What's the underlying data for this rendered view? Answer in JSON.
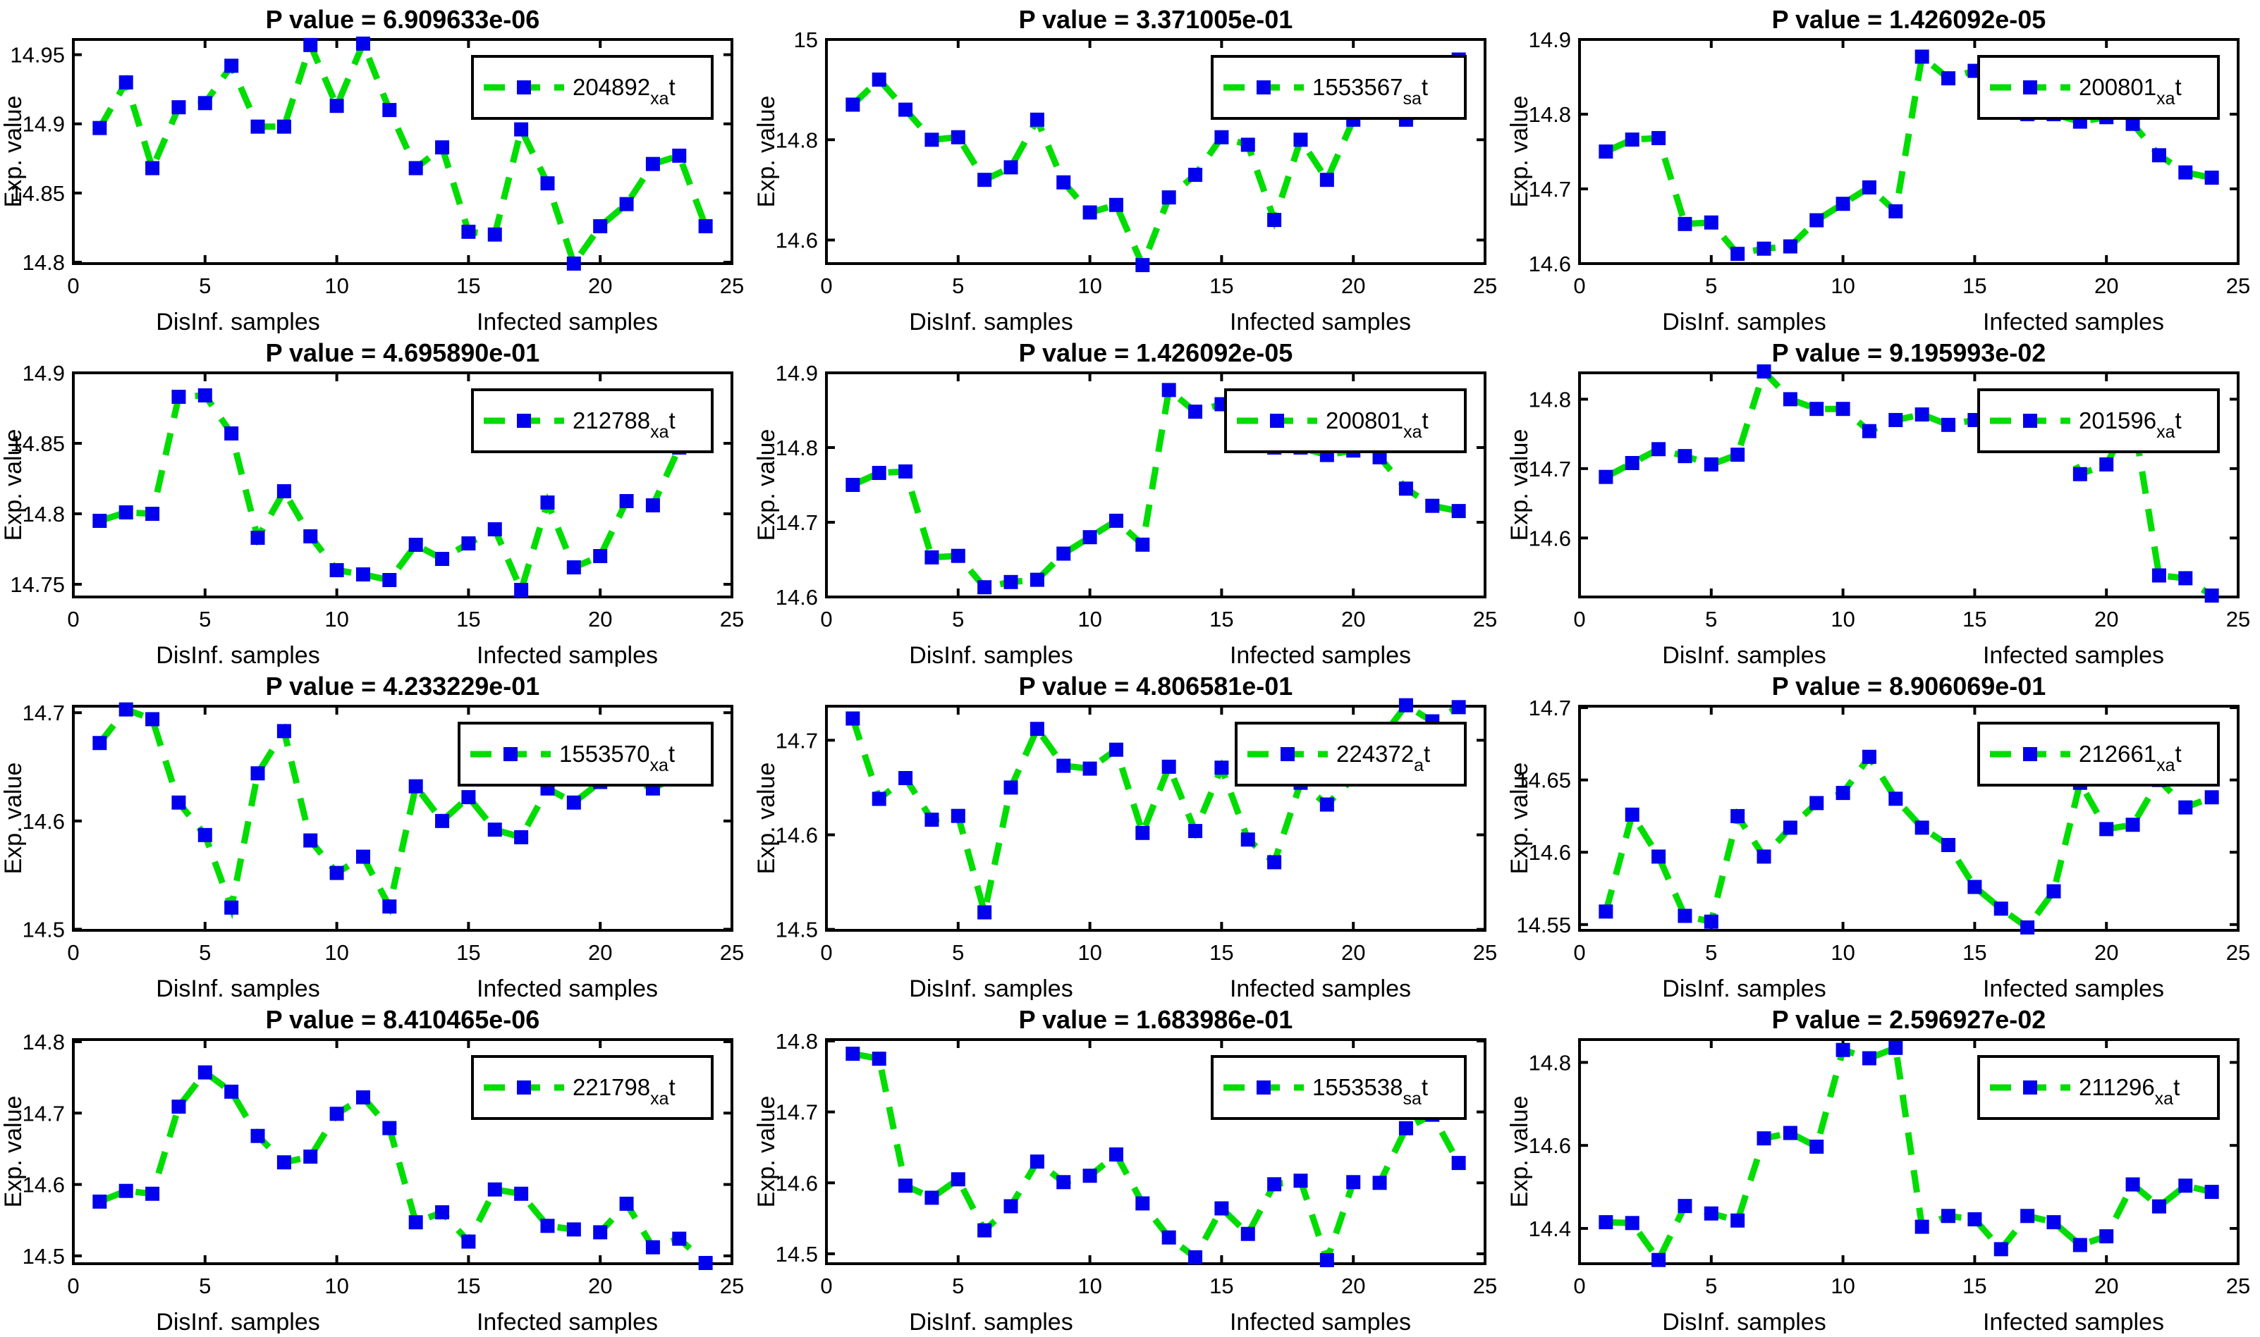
{
  "figure": {
    "background": "#ffffff",
    "line_color": "#00dd00",
    "marker_color": "#0000ee",
    "axis_color": "#000000",
    "text_color": "#000000",
    "ylabel": "Exp. value",
    "xlabel_left": "DisInf. samples",
    "xlabel_right": "Infected samples",
    "xlim": [
      0,
      25
    ],
    "xticks": [
      0,
      5,
      10,
      15,
      20,
      25
    ],
    "x": [
      1,
      2,
      3,
      4,
      5,
      6,
      7,
      8,
      9,
      10,
      11,
      12,
      13,
      14,
      15,
      16,
      17,
      18,
      19,
      20,
      21,
      22,
      23,
      24
    ]
  },
  "chart_data": [
    {
      "type": "line",
      "probe": "204892_x_at",
      "title": "P value = 6.909633e-06",
      "legend": {
        "text": "204892",
        "subscript": "xa",
        "suffix": "t"
      },
      "y": [
        14.897,
        14.93,
        14.868,
        14.912,
        14.915,
        14.942,
        14.898,
        14.898,
        14.957,
        14.913,
        14.958,
        14.91,
        14.868,
        14.883,
        14.822,
        14.82,
        14.896,
        14.857,
        14.799,
        14.826,
        14.842,
        14.871,
        14.877,
        14.826
      ],
      "ylim": [
        14.799,
        14.961
      ],
      "yticks": [
        14.8,
        14.85,
        14.9,
        14.95
      ],
      "ytick_labels": [
        "14.8",
        "14.85",
        "14.9",
        "14.95"
      ]
    },
    {
      "type": "line",
      "probe": "1553567_s_at",
      "title": "P value = 3.371005e-01",
      "legend": {
        "text": "1553567",
        "subscript": "sa",
        "suffix": "t"
      },
      "y": [
        14.87,
        14.92,
        14.86,
        14.8,
        14.805,
        14.72,
        14.745,
        14.84,
        14.715,
        14.655,
        14.67,
        14.55,
        14.685,
        14.73,
        14.805,
        14.79,
        14.64,
        14.8,
        14.72,
        14.84,
        14.87,
        14.84,
        14.86,
        14.96
      ],
      "ylim": [
        14.553,
        15.0
      ],
      "yticks": [
        14.6,
        14.8,
        15
      ],
      "ytick_labels": [
        "14.6",
        "14.8",
        "15"
      ]
    },
    {
      "type": "line",
      "probe": "200801_x_at",
      "title": "P value = 1.426092e-05",
      "legend": {
        "text": "200801",
        "subscript": "xa",
        "suffix": "t"
      },
      "y": [
        14.75,
        14.766,
        14.768,
        14.653,
        14.655,
        14.613,
        14.62,
        14.623,
        14.658,
        14.68,
        14.702,
        14.67,
        14.877,
        14.848,
        14.858,
        14.86,
        14.8,
        14.8,
        14.79,
        14.796,
        14.787,
        14.745,
        14.722,
        14.715
      ],
      "ylim": [
        14.6,
        14.9
      ],
      "yticks": [
        14.6,
        14.7,
        14.8,
        14.9
      ],
      "ytick_labels": [
        "14.6",
        "14.7",
        "14.8",
        "14.9"
      ]
    },
    {
      "type": "line",
      "probe": "212788_x_at",
      "title": "P value = 4.695890e-01",
      "legend": {
        "text": "212788",
        "subscript": "xa",
        "suffix": "t"
      },
      "y": [
        14.795,
        14.801,
        14.8,
        14.883,
        14.884,
        14.857,
        14.783,
        14.816,
        14.784,
        14.76,
        14.757,
        14.753,
        14.778,
        14.768,
        14.779,
        14.789,
        14.746,
        14.808,
        14.762,
        14.77,
        14.809,
        14.806,
        14.847,
        14.868
      ],
      "ylim": [
        14.741,
        14.9
      ],
      "yticks": [
        14.75,
        14.8,
        14.85,
        14.9
      ],
      "ytick_labels": [
        "14.75",
        "14.8",
        "14.85",
        "14.9"
      ]
    },
    {
      "type": "line",
      "probe": "200801_x_at",
      "title": "P value = 1.426092e-05",
      "legend": {
        "text": "200801",
        "subscript": "xa",
        "suffix": "t"
      },
      "y": [
        14.75,
        14.766,
        14.768,
        14.653,
        14.655,
        14.613,
        14.62,
        14.623,
        14.658,
        14.68,
        14.702,
        14.67,
        14.877,
        14.848,
        14.858,
        14.86,
        14.8,
        14.8,
        14.79,
        14.796,
        14.787,
        14.745,
        14.722,
        14.715
      ],
      "ylim": [
        14.6,
        14.9
      ],
      "yticks": [
        14.6,
        14.7,
        14.8,
        14.9
      ],
      "ytick_labels": [
        "14.6",
        "14.7",
        "14.8",
        "14.9"
      ]
    },
    {
      "type": "line",
      "probe": "201596_x_at",
      "title": "P value = 9.195993e-02",
      "legend": {
        "text": "201596",
        "subscript": "xa",
        "suffix": "t"
      },
      "y": [
        14.688,
        14.708,
        14.728,
        14.718,
        14.706,
        14.72,
        14.84,
        14.8,
        14.786,
        14.786,
        14.754,
        14.77,
        14.778,
        14.763,
        14.77,
        14.746,
        14.77,
        14.774,
        14.692,
        14.706,
        14.778,
        14.546,
        14.542,
        14.517
      ],
      "ylim": [
        14.515,
        14.838
      ],
      "yticks": [
        14.6,
        14.7,
        14.8
      ],
      "ytick_labels": [
        "14.6",
        "14.7",
        "14.8"
      ]
    },
    {
      "type": "line",
      "probe": "1553570_x_at",
      "title": "P value = 4.233229e-01",
      "legend": {
        "text": "1553570",
        "subscript": "xa",
        "suffix": "t"
      },
      "y": [
        14.672,
        14.703,
        14.694,
        14.617,
        14.587,
        14.52,
        14.644,
        14.683,
        14.582,
        14.552,
        14.567,
        14.521,
        14.632,
        14.6,
        14.622,
        14.592,
        14.585,
        14.63,
        14.617,
        14.636,
        14.64,
        14.63,
        14.642,
        14.652
      ],
      "ylim": [
        14.499,
        14.706
      ],
      "yticks": [
        14.5,
        14.6,
        14.7
      ],
      "ytick_labels": [
        "14.5",
        "14.6",
        "14.7"
      ]
    },
    {
      "type": "line",
      "probe": "224372_at",
      "title": "P value = 4.806581e-01",
      "legend": {
        "text": "224372",
        "subscript": "a",
        "suffix": "t"
      },
      "y": [
        14.723,
        14.638,
        14.66,
        14.616,
        14.62,
        14.518,
        14.65,
        14.712,
        14.673,
        14.67,
        14.69,
        14.602,
        14.672,
        14.604,
        14.671,
        14.595,
        14.571,
        14.655,
        14.632,
        14.66,
        14.7,
        14.737,
        14.72,
        14.735
      ],
      "ylim": [
        14.499,
        14.736
      ],
      "yticks": [
        14.5,
        14.6,
        14.7
      ],
      "ytick_labels": [
        "14.5",
        "14.6",
        "14.7"
      ]
    },
    {
      "type": "line",
      "probe": "212661_x_at",
      "title": "P value = 8.906069e-01",
      "legend": {
        "text": "212661",
        "subscript": "xa",
        "suffix": "t"
      },
      "y": [
        14.559,
        14.626,
        14.597,
        14.556,
        14.552,
        14.625,
        14.597,
        14.617,
        14.634,
        14.641,
        14.666,
        14.637,
        14.617,
        14.605,
        14.576,
        14.561,
        14.548,
        14.573,
        14.648,
        14.616,
        14.619,
        14.65,
        14.631,
        14.638
      ],
      "ylim": [
        14.546,
        14.701
      ],
      "yticks": [
        14.55,
        14.6,
        14.65,
        14.7
      ],
      "ytick_labels": [
        "14.55",
        "14.6",
        "14.65",
        "14.7"
      ]
    },
    {
      "type": "line",
      "probe": "221798_x_at",
      "title": "P value = 8.410465e-06",
      "legend": {
        "text": "221798",
        "subscript": "xa",
        "suffix": "t"
      },
      "y": [
        14.576,
        14.591,
        14.587,
        14.709,
        14.757,
        14.73,
        14.668,
        14.631,
        14.639,
        14.699,
        14.722,
        14.679,
        14.547,
        14.561,
        14.52,
        14.593,
        14.587,
        14.542,
        14.537,
        14.533,
        14.573,
        14.512,
        14.524,
        14.49
      ],
      "ylim": [
        14.489,
        14.803
      ],
      "yticks": [
        14.5,
        14.6,
        14.7,
        14.8
      ],
      "ytick_labels": [
        "14.5",
        "14.6",
        "14.7",
        "14.8"
      ]
    },
    {
      "type": "line",
      "probe": "1553538_s_at",
      "title": "P value = 1.683986e-01",
      "legend": {
        "text": "1553538",
        "subscript": "sa",
        "suffix": "t"
      },
      "y": [
        14.782,
        14.775,
        14.596,
        14.579,
        14.605,
        14.533,
        14.567,
        14.63,
        14.601,
        14.61,
        14.64,
        14.571,
        14.523,
        14.495,
        14.564,
        14.528,
        14.598,
        14.603,
        14.491,
        14.601,
        14.6,
        14.677,
        14.696,
        14.628
      ],
      "ylim": [
        14.486,
        14.802
      ],
      "yticks": [
        14.5,
        14.6,
        14.7,
        14.8
      ],
      "ytick_labels": [
        "14.5",
        "14.6",
        "14.7",
        "14.8"
      ]
    },
    {
      "type": "line",
      "probe": "211296_x_at",
      "title": "P value = 2.596927e-02",
      "legend": {
        "text": "211296",
        "subscript": "xa",
        "suffix": "t"
      },
      "y": [
        14.415,
        14.413,
        14.324,
        14.454,
        14.436,
        14.419,
        14.617,
        14.63,
        14.597,
        14.83,
        14.81,
        14.835,
        14.404,
        14.43,
        14.422,
        14.35,
        14.43,
        14.415,
        14.36,
        14.381,
        14.506,
        14.453,
        14.503,
        14.488
      ],
      "ylim": [
        14.315,
        14.855
      ],
      "yticks": [
        14.4,
        14.6,
        14.8
      ],
      "ytick_labels": [
        "14.4",
        "14.6",
        "14.8"
      ]
    }
  ]
}
